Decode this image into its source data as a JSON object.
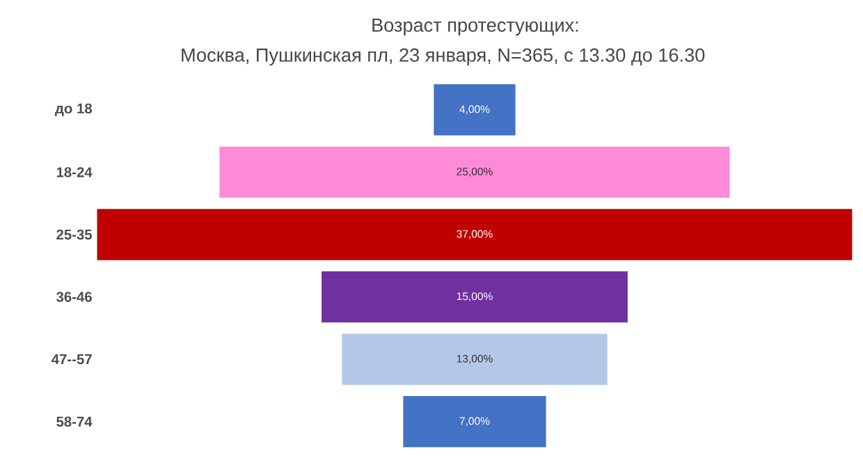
{
  "chart_data": {
    "type": "other",
    "title": "Возраст протестующих:",
    "subtitle": "Москва, Пушкинская пл, 23 января, N=365, с 13.30 до 16.30",
    "categories": [
      "до 18",
      "18-24",
      "25-35",
      "36-46",
      "47--57",
      "58-74"
    ],
    "values": [
      4,
      25,
      37,
      15,
      13,
      7
    ],
    "colors": [
      "#4472c4",
      "#ff8ad8",
      "#c00000",
      "#7030a0",
      "#b4c7e7",
      "#4472c4"
    ],
    "value_labels": [
      "4,00%",
      "25,00%",
      "37,00%",
      "15,00%",
      "13,00%",
      "7,00%"
    ]
  }
}
